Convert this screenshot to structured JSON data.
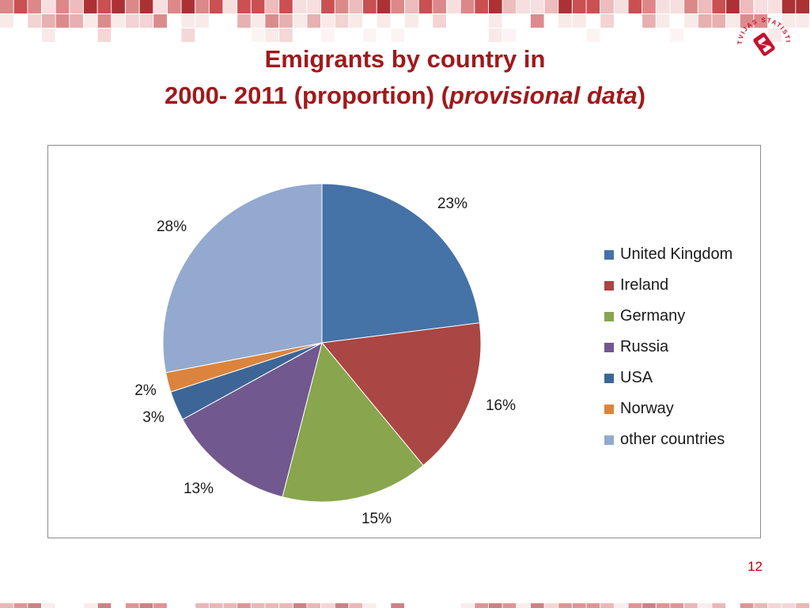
{
  "slide": {
    "title_line1": "Emigrants by country in",
    "title_line2_prefix": "2000- 2011 (proportion) (",
    "title_line2_italic": "provisional data",
    "title_line2_suffix": ")",
    "page_number": "12",
    "logo_text": "LATVIJAS STATISTIKA"
  },
  "colors": {
    "title": "#a0191c",
    "page_number": "#c00000",
    "band_palette": [
      "#a31b1f",
      "#c43d3f",
      "#d97b7b",
      "#ebb5b5",
      "#f5dcdc"
    ]
  },
  "chart_data": {
    "type": "pie",
    "title": "",
    "legend_position": "right",
    "categories": [
      "United Kingdom",
      "Ireland",
      "Germany",
      "Russia",
      "USA",
      "Norway",
      "other countries"
    ],
    "values": [
      23,
      16,
      15,
      13,
      3,
      2,
      28
    ],
    "labels": [
      "23%",
      "16%",
      "15%",
      "13%",
      "3%",
      "2%",
      "28%"
    ],
    "colors": [
      "#4572a7",
      "#aa4643",
      "#89a54e",
      "#71588f",
      "#3d6697",
      "#db843d",
      "#93a9cf"
    ]
  }
}
